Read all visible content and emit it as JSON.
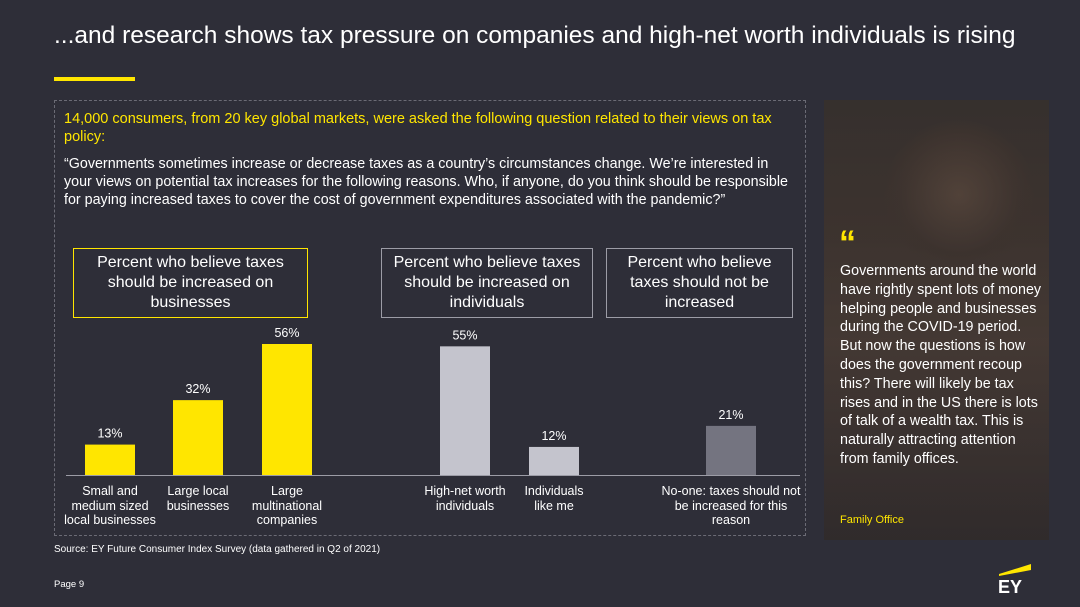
{
  "title": "...and research shows tax pressure on companies and high-net worth individuals is rising",
  "intro": "14,000 consumers, from 20 key global markets, were asked the following question related to their views on tax policy:",
  "question": "“Governments sometimes increase or decrease taxes as a country’s circumstances change. We’re interested in your views on potential tax increases for the following reasons. Who, if anyone, do you think should be responsible for paying increased taxes to cover the cost of government expenditures associated with the pandemic?”",
  "groups": [
    {
      "label": "Percent who believe taxes should be increased on businesses"
    },
    {
      "label": "Percent who believe taxes should be increased on individuals"
    },
    {
      "label": "Percent who believe taxes should not be increased"
    }
  ],
  "chart_data": {
    "type": "bar",
    "categories": [
      "Small and medium sized local businesses",
      "Large local businesses",
      "Large multinational companies",
      "High-net worth individuals",
      "Individuals like me",
      "No-one: taxes should not be increased for this reason"
    ],
    "values": [
      13,
      32,
      56,
      55,
      12,
      21
    ],
    "value_labels": [
      "13%",
      "32%",
      "56%",
      "55%",
      "12%",
      "21%"
    ],
    "groups": [
      {
        "label": "Percent who believe taxes should be increased on businesses",
        "categories": [
          0,
          1,
          2
        ],
        "color": "#ffe600"
      },
      {
        "label": "Percent who believe taxes should be increased on individuals",
        "categories": [
          3,
          4
        ],
        "color": "#c4c4cd"
      },
      {
        "label": "Percent who believe taxes should not be increased",
        "categories": [
          5
        ],
        "color": "#747480"
      }
    ],
    "ylim": [
      0,
      60
    ],
    "grid": false
  },
  "source": "Source: EY Future Consumer Index Survey (data gathered in Q2 of 2021)",
  "page": "Page 9",
  "quote": {
    "mark": "“",
    "text": "Governments around the world have rightly spent lots of money helping people and businesses during the COVID-19 period. But now the questions is how does the government recoup this? There will likely be tax rises and in the US there is lots of talk of a wealth tax. This is naturally attracting attention from family offices.",
    "attribution": "Family Office"
  },
  "logo_text": "EY",
  "colors": {
    "background": "#2e2e38",
    "accent": "#ffe600",
    "light_gray": "#c4c4cd",
    "dark_gray": "#747480"
  }
}
